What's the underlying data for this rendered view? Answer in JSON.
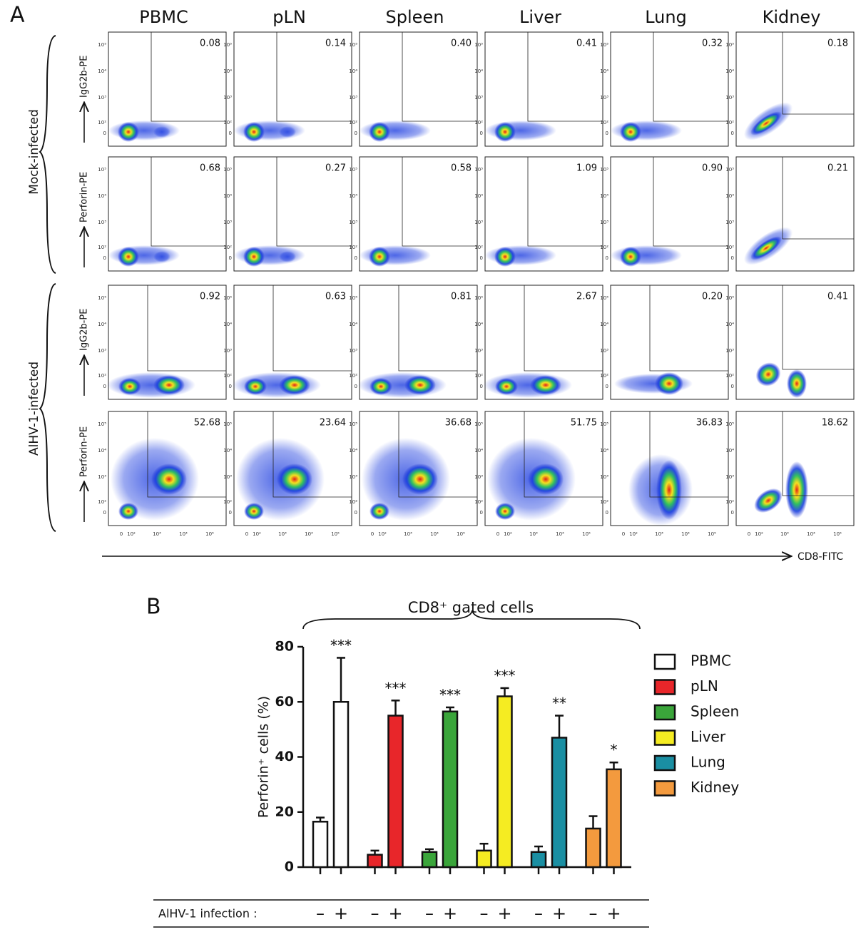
{
  "panel_a": {
    "label": "A",
    "columns": [
      "PBMC",
      "pLN",
      "Spleen",
      "Liver",
      "Lung",
      "Kidney"
    ],
    "group_labels": [
      "Mock-infected",
      "AlHV-1-infected"
    ],
    "rows": [
      {
        "y_label": "IgG2b-PE",
        "gate_labels": [
          "0.08",
          "0.14",
          "0.40",
          "0.41",
          "0.32",
          "0.18"
        ]
      },
      {
        "y_label": "Perforin-PE",
        "gate_labels": [
          "0.68",
          "0.27",
          "0.58",
          "1.09",
          "0.90",
          "0.21"
        ]
      },
      {
        "y_label": "IgG2b-PE",
        "gate_labels": [
          "0.92",
          "0.63",
          "0.81",
          "2.67",
          "0.20",
          "0.41"
        ]
      },
      {
        "y_label": "Perforin-PE",
        "gate_labels": [
          "52.68",
          "23.64",
          "36.68",
          "51.75",
          "36.83",
          "18.62"
        ]
      }
    ],
    "x_label": "CD8-FITC",
    "tick_labels": [
      "0",
      "10²",
      "10³",
      "10⁴",
      "10⁵"
    ]
  },
  "chart_data": {
    "type": "bar",
    "panel_label": "B",
    "title": "CD8⁺ gated cells",
    "y_label": "Perforin⁺ cells (%)",
    "x_label": "AlHV-1 infection :",
    "categories": [
      "PBMC",
      "pLN",
      "Spleen",
      "Liver",
      "Lung",
      "Kidney"
    ],
    "colors": [
      "#ffffff",
      "#e8262a",
      "#3aa53a",
      "#f5ec22",
      "#1a8fa3",
      "#f39a3e"
    ],
    "series": [
      {
        "name": "–",
        "values": [
          16.5,
          4.5,
          5.5,
          6,
          5.5,
          14
        ],
        "errors": [
          1.5,
          1.5,
          1,
          2.5,
          2,
          4.5
        ]
      },
      {
        "name": "+",
        "values": [
          60,
          55,
          56.5,
          62,
          47,
          35.5
        ],
        "errors": [
          16,
          5.5,
          1.5,
          3,
          8,
          2.5
        ]
      }
    ],
    "significance": [
      "***",
      "***",
      "***",
      "***",
      "**",
      "*"
    ],
    "ylim": [
      0,
      80
    ],
    "yticks": [
      0,
      20,
      40,
      60,
      80
    ]
  }
}
